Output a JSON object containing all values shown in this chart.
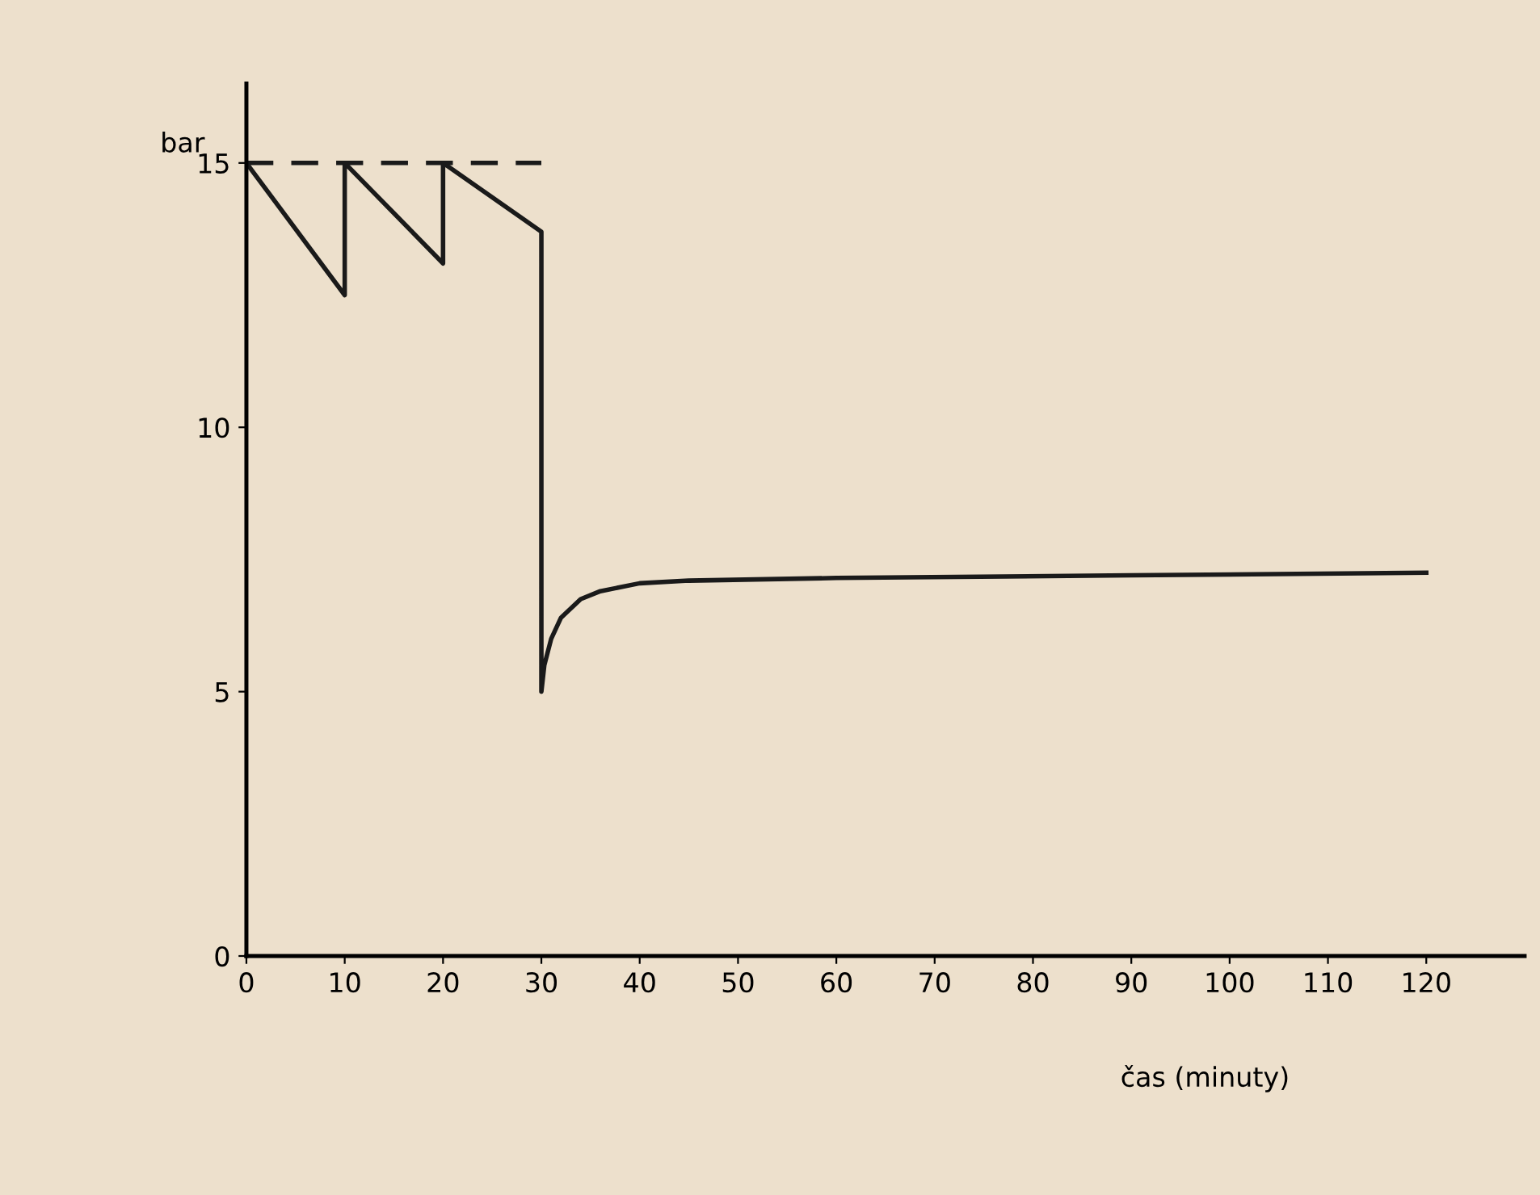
{
  "chart_data": {
    "type": "line",
    "ylabel": "bar",
    "xlabel": "čas (minuty)",
    "series": [
      {
        "color": "#1a1a1a",
        "line_style": "solid",
        "x": [
          0,
          10,
          10,
          20,
          20,
          30,
          30,
          30.3,
          31,
          32,
          34,
          36,
          40,
          45,
          60,
          90,
          120
        ],
        "values": [
          15,
          12.5,
          15,
          13.1,
          15,
          13.7,
          5.0,
          5.5,
          6.0,
          6.4,
          6.75,
          6.9,
          7.05,
          7.1,
          7.15,
          7.2,
          7.25
        ]
      },
      {
        "color": "#1a1a1a",
        "line_style": "dashed",
        "x": [
          0,
          30
        ],
        "values": [
          15,
          15
        ]
      }
    ],
    "xlim": [
      0,
      130
    ],
    "ylim": [
      0,
      16.5
    ],
    "xticks": [
      0,
      10,
      20,
      30,
      40,
      50,
      60,
      70,
      80,
      90,
      100,
      110,
      120
    ],
    "yticks": [
      0,
      5,
      10,
      15
    ],
    "grid": false,
    "legend": false,
    "marker": "none"
  }
}
